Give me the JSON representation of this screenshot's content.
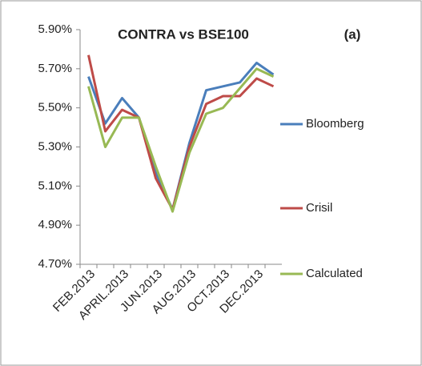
{
  "chart_data": {
    "type": "line",
    "title": "CONTRA vs BSE100",
    "annotation": "(a)",
    "categories": [
      "FEB.2013",
      null,
      "APRIL.2013",
      null,
      "JUN.2013",
      null,
      "AUG.2013",
      null,
      "OCT.2013",
      null,
      "DEC.2013",
      null
    ],
    "series": [
      {
        "name": "Bloomberg",
        "color": "#4a7ebb",
        "values": [
          5.66,
          5.42,
          5.55,
          5.45,
          5.17,
          4.98,
          5.32,
          5.59,
          5.61,
          5.63,
          5.73,
          5.67
        ]
      },
      {
        "name": "Crisil",
        "color": "#be4b48",
        "values": [
          5.77,
          5.38,
          5.49,
          5.45,
          5.14,
          4.98,
          5.3,
          5.52,
          5.56,
          5.56,
          5.65,
          5.61
        ]
      },
      {
        "name": "Calculated",
        "color": "#98b954",
        "values": [
          5.61,
          5.3,
          5.45,
          5.45,
          5.2,
          4.97,
          5.27,
          5.47,
          5.5,
          5.6,
          5.7,
          5.66
        ]
      }
    ],
    "ylim": [
      4.7,
      5.9
    ],
    "yticks": [
      {
        "value": 4.7,
        "label": "4.70%"
      },
      {
        "value": 4.9,
        "label": "4.90%"
      },
      {
        "value": 5.1,
        "label": "5.10%"
      },
      {
        "value": 5.3,
        "label": "5.30%"
      },
      {
        "value": 5.5,
        "label": "5.50%"
      },
      {
        "value": 5.7,
        "label": "5.70%"
      },
      {
        "value": 5.9,
        "label": "5.90%"
      }
    ],
    "grid": false,
    "legend": "right"
  }
}
